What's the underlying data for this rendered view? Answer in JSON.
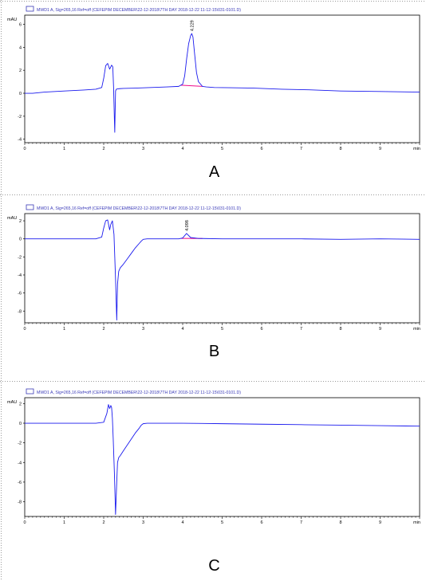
{
  "colors": {
    "signal": "#1a1aee",
    "baseline": "#ee0a8a",
    "axis": "#000000",
    "legend_text": "#3a3ab8"
  },
  "chart_data": [
    {
      "type": "line",
      "legend": "MWD1 A, Sig=265,16 Ref=off (CEFEPIM DECEMBER\\22-12-2018\\7TH DAY 2018-12-22 11-12-15\\031-0101.D)",
      "ylabel": "mAU",
      "xunit": "min",
      "xlim": [
        0,
        10
      ],
      "ylim": [
        -4.3,
        6.8
      ],
      "xticks": [
        "0",
        "1",
        "2",
        "3",
        "4",
        "5",
        "6",
        "7",
        "8",
        "9",
        "min"
      ],
      "yticks": [
        "6",
        "4",
        "2",
        "0",
        "-2",
        "-4"
      ],
      "yticks_values": [
        6,
        4,
        2,
        0,
        -2,
        -4
      ],
      "peak_label": "4.229",
      "peak_x": 4.229,
      "baseline_segment": [
        3.95,
        4.5
      ],
      "series": [
        {
          "x": [
            0.0,
            0.2,
            0.5,
            1.0,
            1.5,
            1.8,
            1.95,
            2.0,
            2.05,
            2.1,
            2.15,
            2.18,
            2.2,
            2.23,
            2.25,
            2.27,
            2.28,
            2.29,
            2.3,
            2.32,
            2.35,
            2.4,
            2.5,
            2.8,
            3.2,
            3.6,
            3.9,
            4.0,
            4.05,
            4.1,
            4.15,
            4.2,
            4.229,
            4.26,
            4.3,
            4.35,
            4.4,
            4.5,
            4.6,
            4.8,
            5.2,
            5.8,
            6.5,
            7.2,
            8.0,
            9.0,
            10.0
          ],
          "y": [
            0.0,
            0.0,
            0.1,
            0.2,
            0.28,
            0.35,
            0.5,
            1.3,
            2.4,
            2.6,
            2.1,
            2.3,
            2.45,
            2.3,
            0.5,
            -2.2,
            -3.4,
            -1.5,
            0.2,
            0.35,
            0.38,
            0.4,
            0.42,
            0.45,
            0.5,
            0.55,
            0.6,
            0.8,
            1.5,
            3.0,
            4.3,
            5.0,
            5.2,
            4.9,
            3.5,
            1.8,
            1.0,
            0.6,
            0.55,
            0.5,
            0.48,
            0.45,
            0.35,
            0.3,
            0.2,
            0.15,
            0.1
          ]
        }
      ]
    },
    {
      "type": "line",
      "legend": "MWD1 A, Sig=265,16 Ref=off (CEFEPIM DECEMBER\\22-12-2018\\7TH DAY 2018-12-22 11-12-15\\031-0101.D)",
      "ylabel": "mAU",
      "xunit": "min",
      "xlim": [
        0,
        10
      ],
      "ylim": [
        -9.3,
        2.8
      ],
      "xticks": [
        "0",
        "1",
        "2",
        "3",
        "4",
        "5",
        "6",
        "7",
        "8",
        "9",
        "min"
      ],
      "yticks": [
        "2",
        "0",
        "-2",
        "-4",
        "-6",
        "-8"
      ],
      "yticks_values": [
        2,
        0,
        -2,
        -4,
        -6,
        -8
      ],
      "peak_label": "4.098",
      "peak_x": 4.098,
      "baseline_segment": [
        3.95,
        4.5
      ],
      "series": [
        {
          "x": [
            0.0,
            1.0,
            1.8,
            1.95,
            2.0,
            2.05,
            2.1,
            2.15,
            2.18,
            2.22,
            2.26,
            2.3,
            2.33,
            2.35,
            2.38,
            2.42,
            2.5,
            2.6,
            2.7,
            2.8,
            2.9,
            2.95,
            3.0,
            3.1,
            3.5,
            3.9,
            4.0,
            4.098,
            4.2,
            4.4,
            5.0,
            6.0,
            7.0,
            8.0,
            9.0,
            10.0
          ],
          "y": [
            0.0,
            0.0,
            0.0,
            0.2,
            1.2,
            2.0,
            2.1,
            1.0,
            1.6,
            2.0,
            0.5,
            -4.5,
            -9.0,
            -5.0,
            -3.6,
            -3.2,
            -2.8,
            -2.2,
            -1.6,
            -1.0,
            -0.5,
            -0.25,
            -0.05,
            0.0,
            0.0,
            0.0,
            0.1,
            0.6,
            0.15,
            0.05,
            0.0,
            0.0,
            0.0,
            -0.05,
            0.0,
            -0.05
          ]
        }
      ]
    },
    {
      "type": "line",
      "legend": "MWD1 A, Sig=265,16 Ref=off (CEFEPIM DECEMBER\\22-12-2018\\7TH DAY 2018-12-22 11-12-15\\031-0101.D)",
      "ylabel": "mAU",
      "xunit": "min",
      "xlim": [
        0,
        10
      ],
      "ylim": [
        -9.5,
        2.6
      ],
      "xticks": [
        "0",
        "1",
        "2",
        "3",
        "4",
        "5",
        "6",
        "7",
        "8",
        "9",
        "min"
      ],
      "yticks": [
        "2",
        "0",
        "-2",
        "-4",
        "-6",
        "-8"
      ],
      "yticks_values": [
        2,
        0,
        -2,
        -4,
        -6,
        -8
      ],
      "series": [
        {
          "x": [
            0.0,
            1.0,
            1.8,
            2.0,
            2.08,
            2.12,
            2.15,
            2.18,
            2.2,
            2.22,
            2.24,
            2.27,
            2.3,
            2.33,
            2.35,
            2.38,
            2.42,
            2.5,
            2.6,
            2.7,
            2.8,
            2.9,
            2.95,
            3.0,
            3.1,
            3.5,
            4.0,
            5.0,
            6.0,
            7.0,
            8.0,
            9.0,
            10.0
          ],
          "y": [
            0.0,
            0.0,
            0.0,
            0.1,
            1.0,
            1.9,
            1.5,
            1.8,
            1.6,
            0.5,
            -1.5,
            -5.0,
            -9.3,
            -6.0,
            -4.0,
            -3.5,
            -3.3,
            -2.8,
            -2.2,
            -1.6,
            -1.0,
            -0.5,
            -0.2,
            -0.05,
            0.0,
            0.0,
            0.0,
            -0.05,
            -0.1,
            -0.15,
            -0.2,
            -0.25,
            -0.3
          ]
        }
      ]
    }
  ],
  "panel_labels": [
    "A",
    "B",
    "C"
  ]
}
